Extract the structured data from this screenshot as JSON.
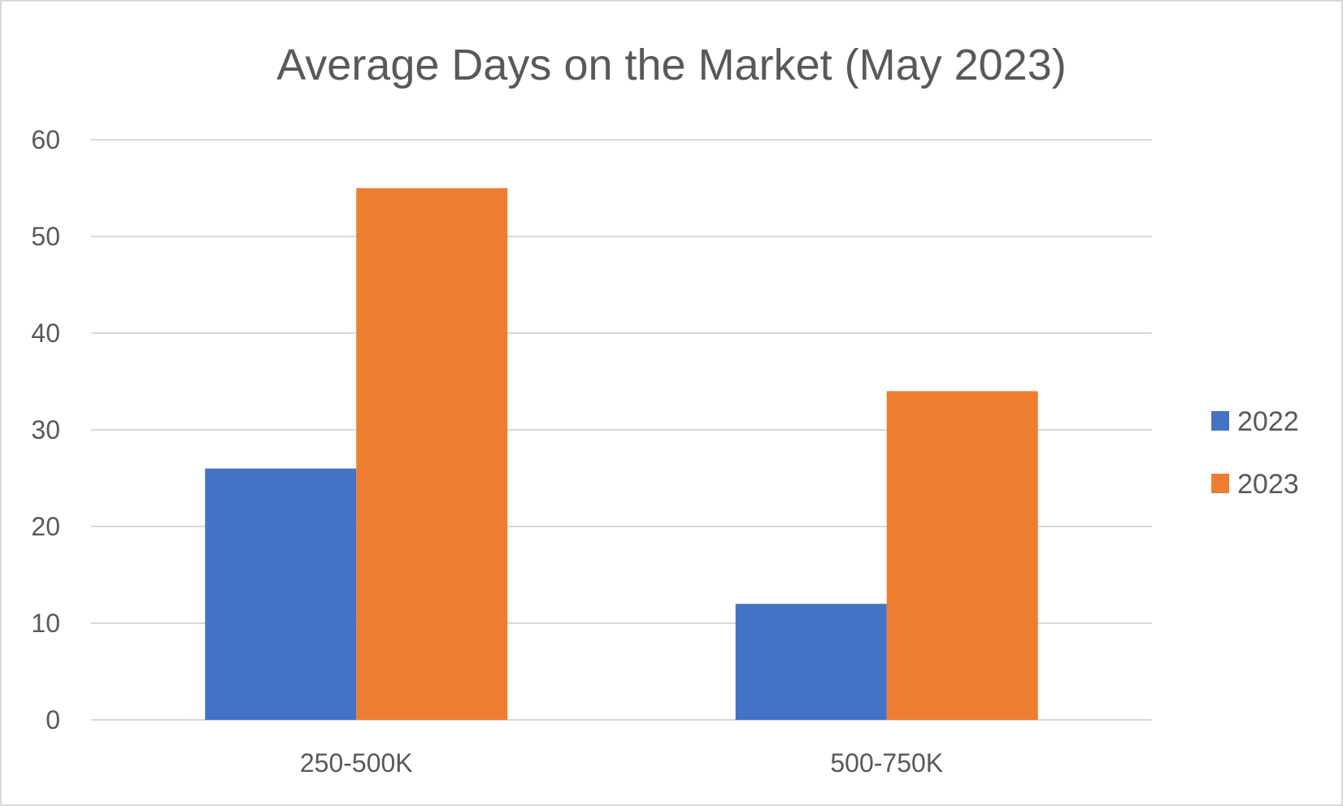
{
  "chart_data": {
    "type": "bar",
    "title": "Average Days on the Market (May 2023)",
    "xlabel": "",
    "ylabel": "",
    "categories": [
      "250-500K",
      "500-750K"
    ],
    "series": [
      {
        "name": "2022",
        "values": [
          26,
          12
        ],
        "color": "#4472C4"
      },
      {
        "name": "2023",
        "values": [
          55,
          34
        ],
        "color": "#ED7D31"
      }
    ],
    "ylim": [
      0,
      60
    ],
    "yticks": [
      0,
      10,
      20,
      30,
      40,
      50,
      60
    ],
    "grid": true,
    "legend": "right"
  }
}
